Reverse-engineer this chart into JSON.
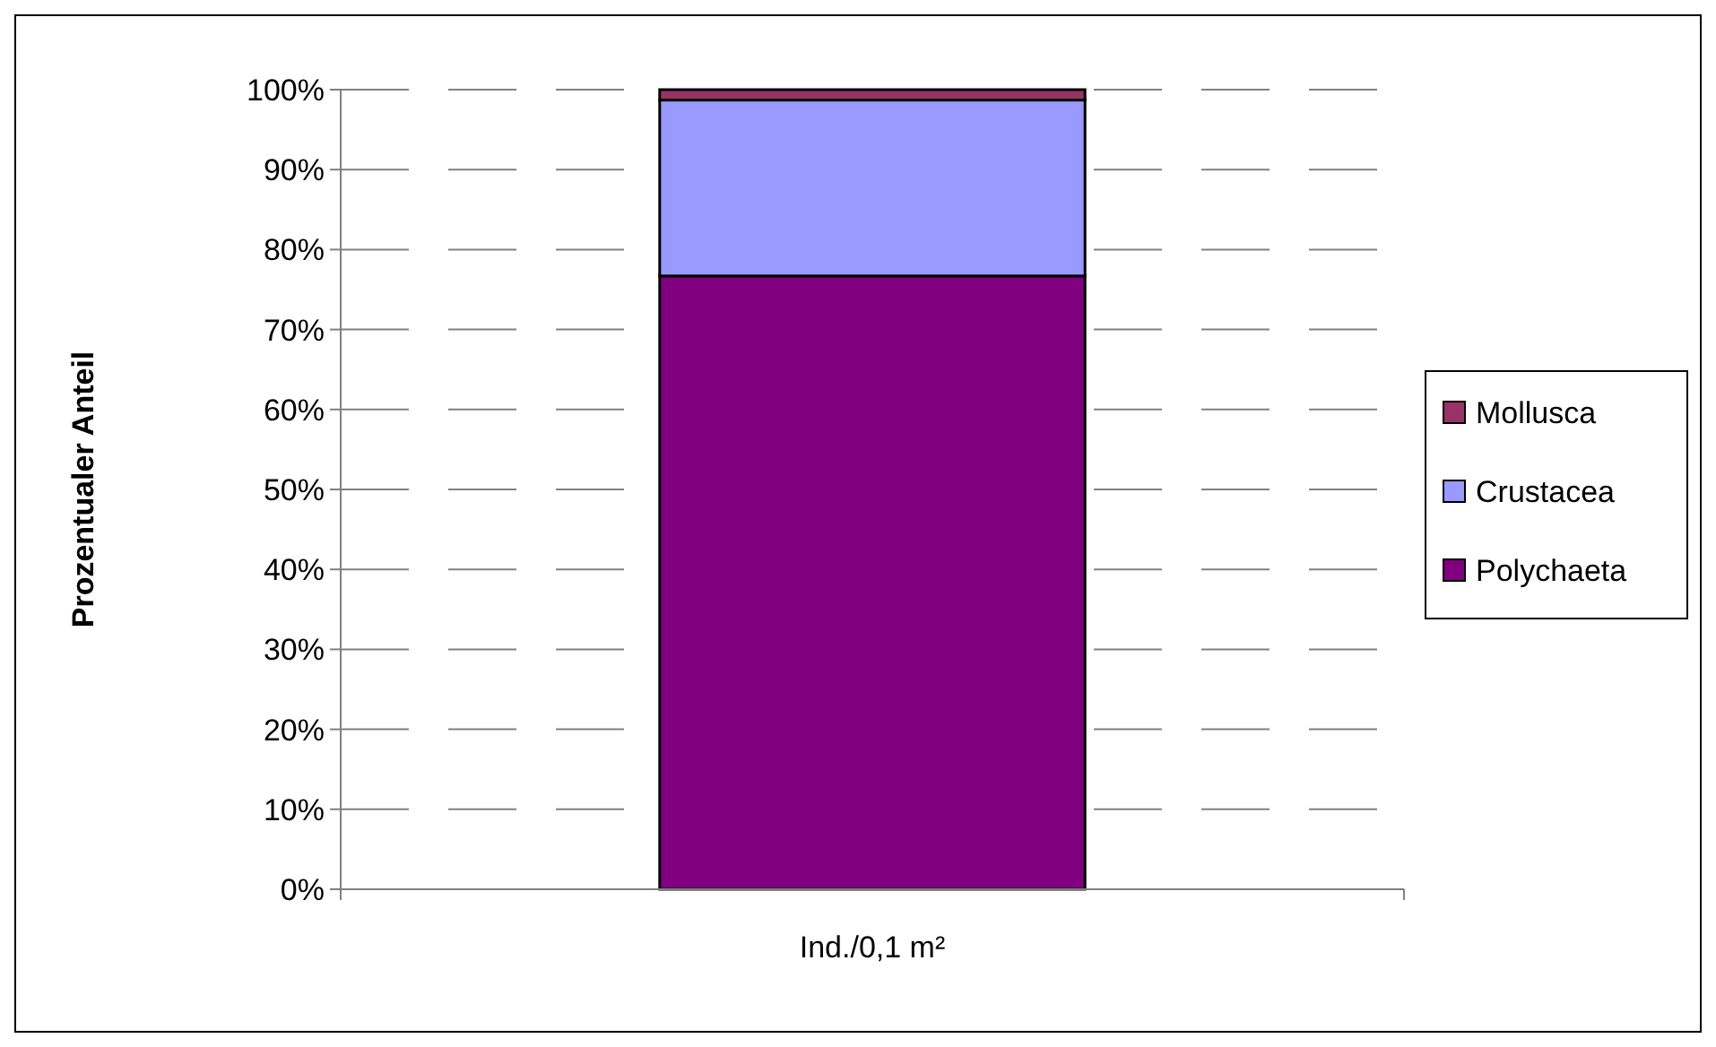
{
  "chart_data": {
    "type": "bar",
    "stacked": true,
    "ylabel": "Prozentualer Anteil",
    "categories": [
      "Ind./0,1 m²"
    ],
    "series": [
      {
        "name": "Polychaeta",
        "color": "#800080",
        "values": [
          76.7
        ]
      },
      {
        "name": "Crustacea",
        "color": "#9999ff",
        "values": [
          22.0
        ]
      },
      {
        "name": "Mollusca",
        "color": "#993366",
        "values": [
          1.3
        ]
      }
    ],
    "ylim": [
      0,
      100
    ],
    "yticks": [
      {
        "value": 0,
        "label": "0%"
      },
      {
        "value": 10,
        "label": "10%"
      },
      {
        "value": 20,
        "label": "20%"
      },
      {
        "value": 30,
        "label": "30%"
      },
      {
        "value": 40,
        "label": "40%"
      },
      {
        "value": 50,
        "label": "50%"
      },
      {
        "value": 60,
        "label": "60%"
      },
      {
        "value": 70,
        "label": "70%"
      },
      {
        "value": 80,
        "label": "80%"
      },
      {
        "value": 90,
        "label": "90%"
      },
      {
        "value": 100,
        "label": "100%"
      }
    ],
    "grid": "y",
    "legend": "right"
  }
}
